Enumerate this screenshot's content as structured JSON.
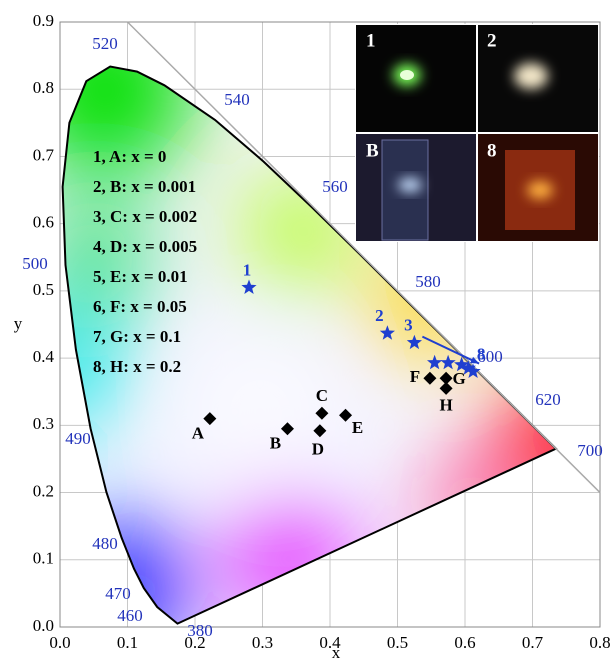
{
  "chart_data": {
    "type": "scatter",
    "xlim": [
      0,
      0.8
    ],
    "ylim": [
      0,
      0.9
    ],
    "xticks": [
      {
        "value": 0,
        "label": "0.0"
      },
      0.1,
      0.2,
      0.3,
      0.4,
      0.5,
      0.6,
      0.7,
      0.8
    ],
    "yticks": [
      {
        "value": 0,
        "label": "0.0"
      },
      0.1,
      0.2,
      0.3,
      0.4,
      0.5,
      0.6,
      0.7,
      0.8,
      0.9
    ],
    "xlabel": "x",
    "ylabel": "y",
    "grid": true,
    "series": [
      {
        "marker": "star",
        "color": "#1f3fd0",
        "x": [
          0.28,
          0.485,
          0.525,
          0.555,
          0.575,
          0.595,
          0.605,
          0.612
        ],
        "y": [
          0.505,
          0.437,
          0.423,
          0.393,
          0.393,
          0.39,
          0.385,
          0.38
        ],
        "point_labels": [
          "1",
          "2",
          "3",
          null,
          null,
          null,
          null,
          "8"
        ]
      },
      {
        "marker": "diamond",
        "color": "#000000",
        "x": [
          0.222,
          0.337,
          0.388,
          0.385,
          0.423,
          0.548,
          0.572,
          0.572
        ],
        "y": [
          0.31,
          0.295,
          0.318,
          0.292,
          0.315,
          0.37,
          0.37,
          0.355
        ],
        "point_labels": [
          "A",
          "B",
          "C",
          "D",
          "E",
          "F",
          "G",
          "H"
        ]
      }
    ],
    "wavelength_labels": [
      "380",
      "460",
      "470",
      "480",
      "490",
      "500",
      "520",
      "540",
      "560",
      "580",
      "600",
      "620",
      "700"
    ],
    "legend_lines": [
      "1, A: x = 0",
      "2, B: x = 0.001",
      "3, C: x = 0.002",
      "4, D: x = 0.005",
      "5, E: x = 0.01",
      "6, F: x = 0.05",
      "7, G: x = 0.1",
      "8, H: x = 0.2"
    ],
    "inset_labels": [
      "1",
      "2",
      "B",
      "8"
    ]
  }
}
